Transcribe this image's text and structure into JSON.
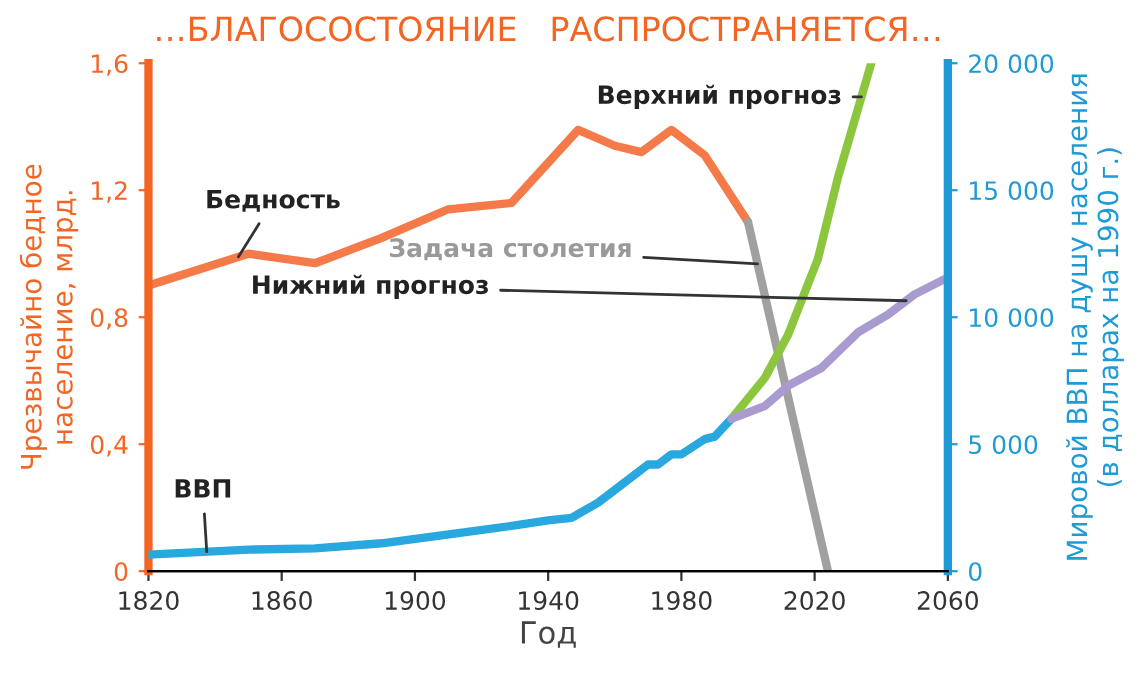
{
  "chart_data": {
    "type": "line",
    "title": "…БЛАГОСОСТОЯНИЕ   РАСПРОСТРАНЯЕТСЯ…",
    "xlabel": "Год",
    "ylabel": "Чрезвычайно бедное\nнаселение, млрд.",
    "y2label": "Мировой ВВП на душу населения\n(в долларах на 1990 г.)",
    "xlim": [
      1820,
      2060
    ],
    "xticks": [
      1820,
      1860,
      1900,
      1940,
      1980,
      2020,
      2060
    ],
    "ylim": [
      0,
      1.6
    ],
    "yticks": [
      {
        "value": 0,
        "label": "0"
      },
      {
        "value": 0.4,
        "label": "0,4"
      },
      {
        "value": 0.8,
        "label": "0,8"
      },
      {
        "value": 1.2,
        "label": "1,2"
      },
      {
        "value": 1.6,
        "label": "1,6"
      }
    ],
    "y2lim": [
      0,
      20000
    ],
    "y2ticks": [
      {
        "value": 0,
        "label": "0"
      },
      {
        "value": 5000,
        "label": "5 000"
      },
      {
        "value": 10000,
        "label": "10 000"
      },
      {
        "value": 15000,
        "label": "15 000"
      },
      {
        "value": 20000,
        "label": "20 000"
      }
    ],
    "grid": false,
    "legend": false,
    "marker": "none",
    "line_style": "solid",
    "series": [
      {
        "name": "Бедность",
        "color": "#f47a4a",
        "x": [
          1820,
          1850,
          1870,
          1890,
          1910,
          1929,
          1949,
          1960,
          1968,
          1977,
          1987,
          2000
        ],
        "values": [
          0.9,
          1.0,
          0.97,
          1.05,
          1.14,
          1.16,
          1.39,
          1.34,
          1.32,
          1.39,
          1.31,
          1.1
        ]
      },
      {
        "name": "Задача столетия",
        "color": "#a0a0a0",
        "x": [
          2000,
          2024
        ],
        "values": [
          1.1,
          0
        ]
      },
      {
        "name": "ВВП",
        "color": "#29a8e0",
        "axis": "y2",
        "x": [
          1820,
          1850,
          1870,
          1890,
          1913,
          1930,
          1940,
          1947,
          1955,
          1962,
          1970,
          1973,
          1977,
          1980,
          1987,
          1990,
          1995
        ],
        "values": [
          650,
          850,
          900,
          1100,
          1500,
          1800,
          2000,
          2100,
          2700,
          3400,
          4200,
          4200,
          4600,
          4600,
          5200,
          5300,
          6000
        ]
      },
      {
        "name": "Верхний прогноз",
        "color": "#8cc63f",
        "axis": "y2",
        "x": [
          1995,
          2005,
          2012,
          2021,
          2027,
          2037
        ],
        "values": [
          6000,
          7600,
          9300,
          12300,
          15500,
          20000
        ]
      },
      {
        "name": "Нижний прогноз",
        "color": "#a99bd0",
        "axis": "y2",
        "x": [
          1995,
          2005,
          2012,
          2022,
          2033,
          2042,
          2050,
          2059
        ],
        "values": [
          6000,
          6500,
          7300,
          8000,
          9400,
          10100,
          10900,
          11500
        ]
      }
    ]
  }
}
